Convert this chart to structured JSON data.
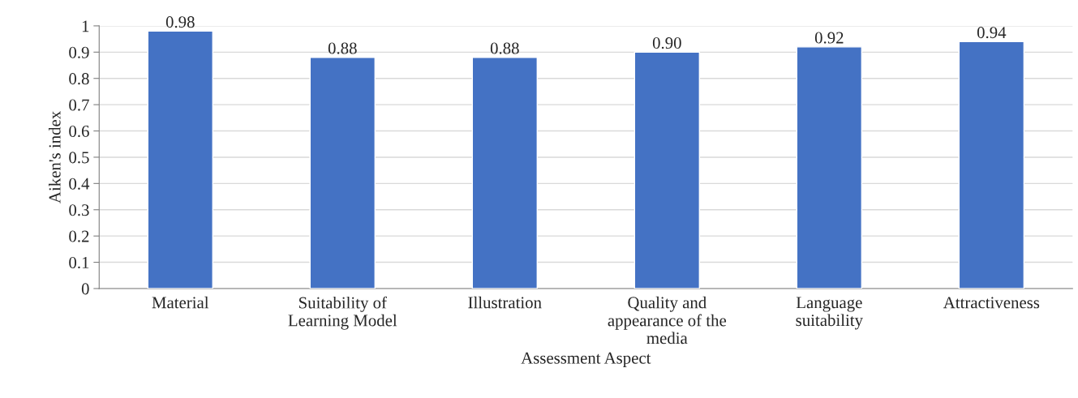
{
  "chart_data": {
    "type": "bar",
    "xlabel": "Assessment Aspect",
    "ylabel": "Aiken's index",
    "categories": [
      "Material",
      "Suitability of\nLearning Model",
      "Illustration",
      "Quality and\nappearance of the\nmedia",
      "Language\nsuitability",
      "Attractiveness"
    ],
    "values": [
      0.98,
      0.88,
      0.88,
      0.9,
      0.92,
      0.94
    ],
    "value_labels": [
      "0.98",
      "0.88",
      "0.88",
      "0.90",
      "0.92",
      "0.94"
    ],
    "color": "#4472c4",
    "ylim": [
      0,
      1
    ],
    "yticks": [
      0,
      0.1,
      0.2,
      0.3,
      0.4,
      0.5,
      0.6,
      0.7,
      0.8,
      0.9,
      1
    ],
    "grid": "y",
    "legend": false
  }
}
